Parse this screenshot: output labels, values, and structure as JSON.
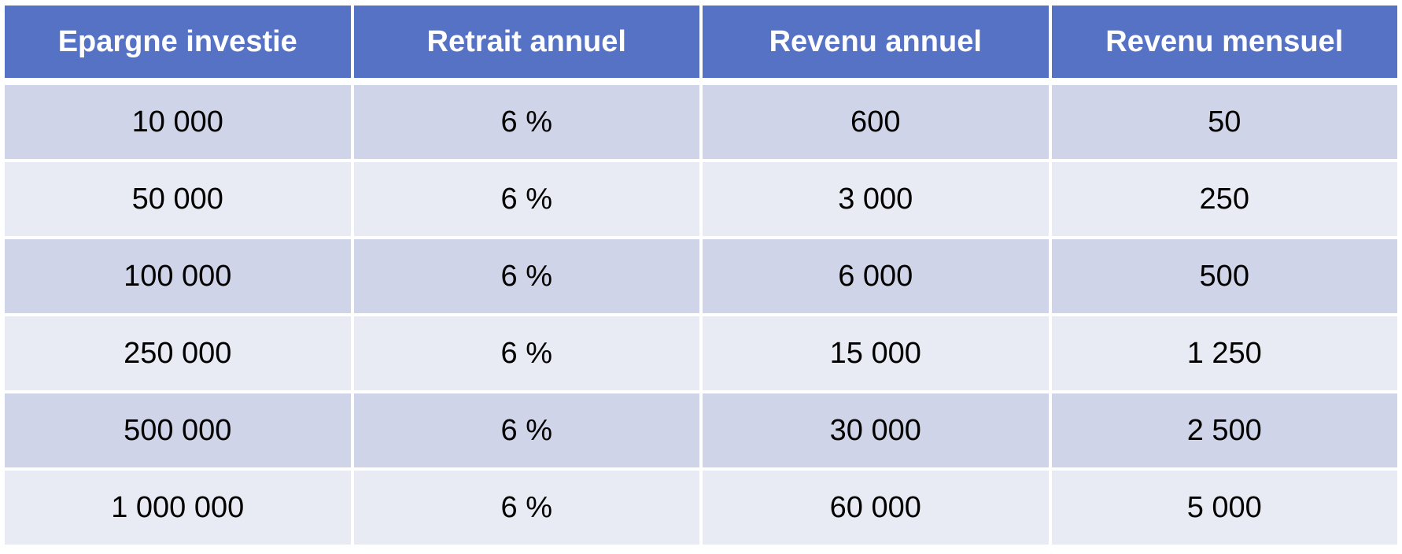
{
  "table": {
    "headers": [
      "Epargne investie",
      "Retrait annuel",
      "Revenu annuel",
      "Revenu mensuel"
    ],
    "rows": [
      [
        "10 000",
        "6 %",
        "600",
        "50"
      ],
      [
        "50 000",
        "6 %",
        "3 000",
        "250"
      ],
      [
        "100 000",
        "6 %",
        "6 000",
        "500"
      ],
      [
        "250 000",
        "6 %",
        "15 000",
        "1 250"
      ],
      [
        "500 000",
        "6 %",
        "30 000",
        "2 500"
      ],
      [
        "1 000 000",
        "6 %",
        "60 000",
        "5 000"
      ]
    ]
  },
  "colors": {
    "header_bg": "#5672c4",
    "row_dark": "#cfd4e8",
    "row_light": "#e9ebf4"
  }
}
